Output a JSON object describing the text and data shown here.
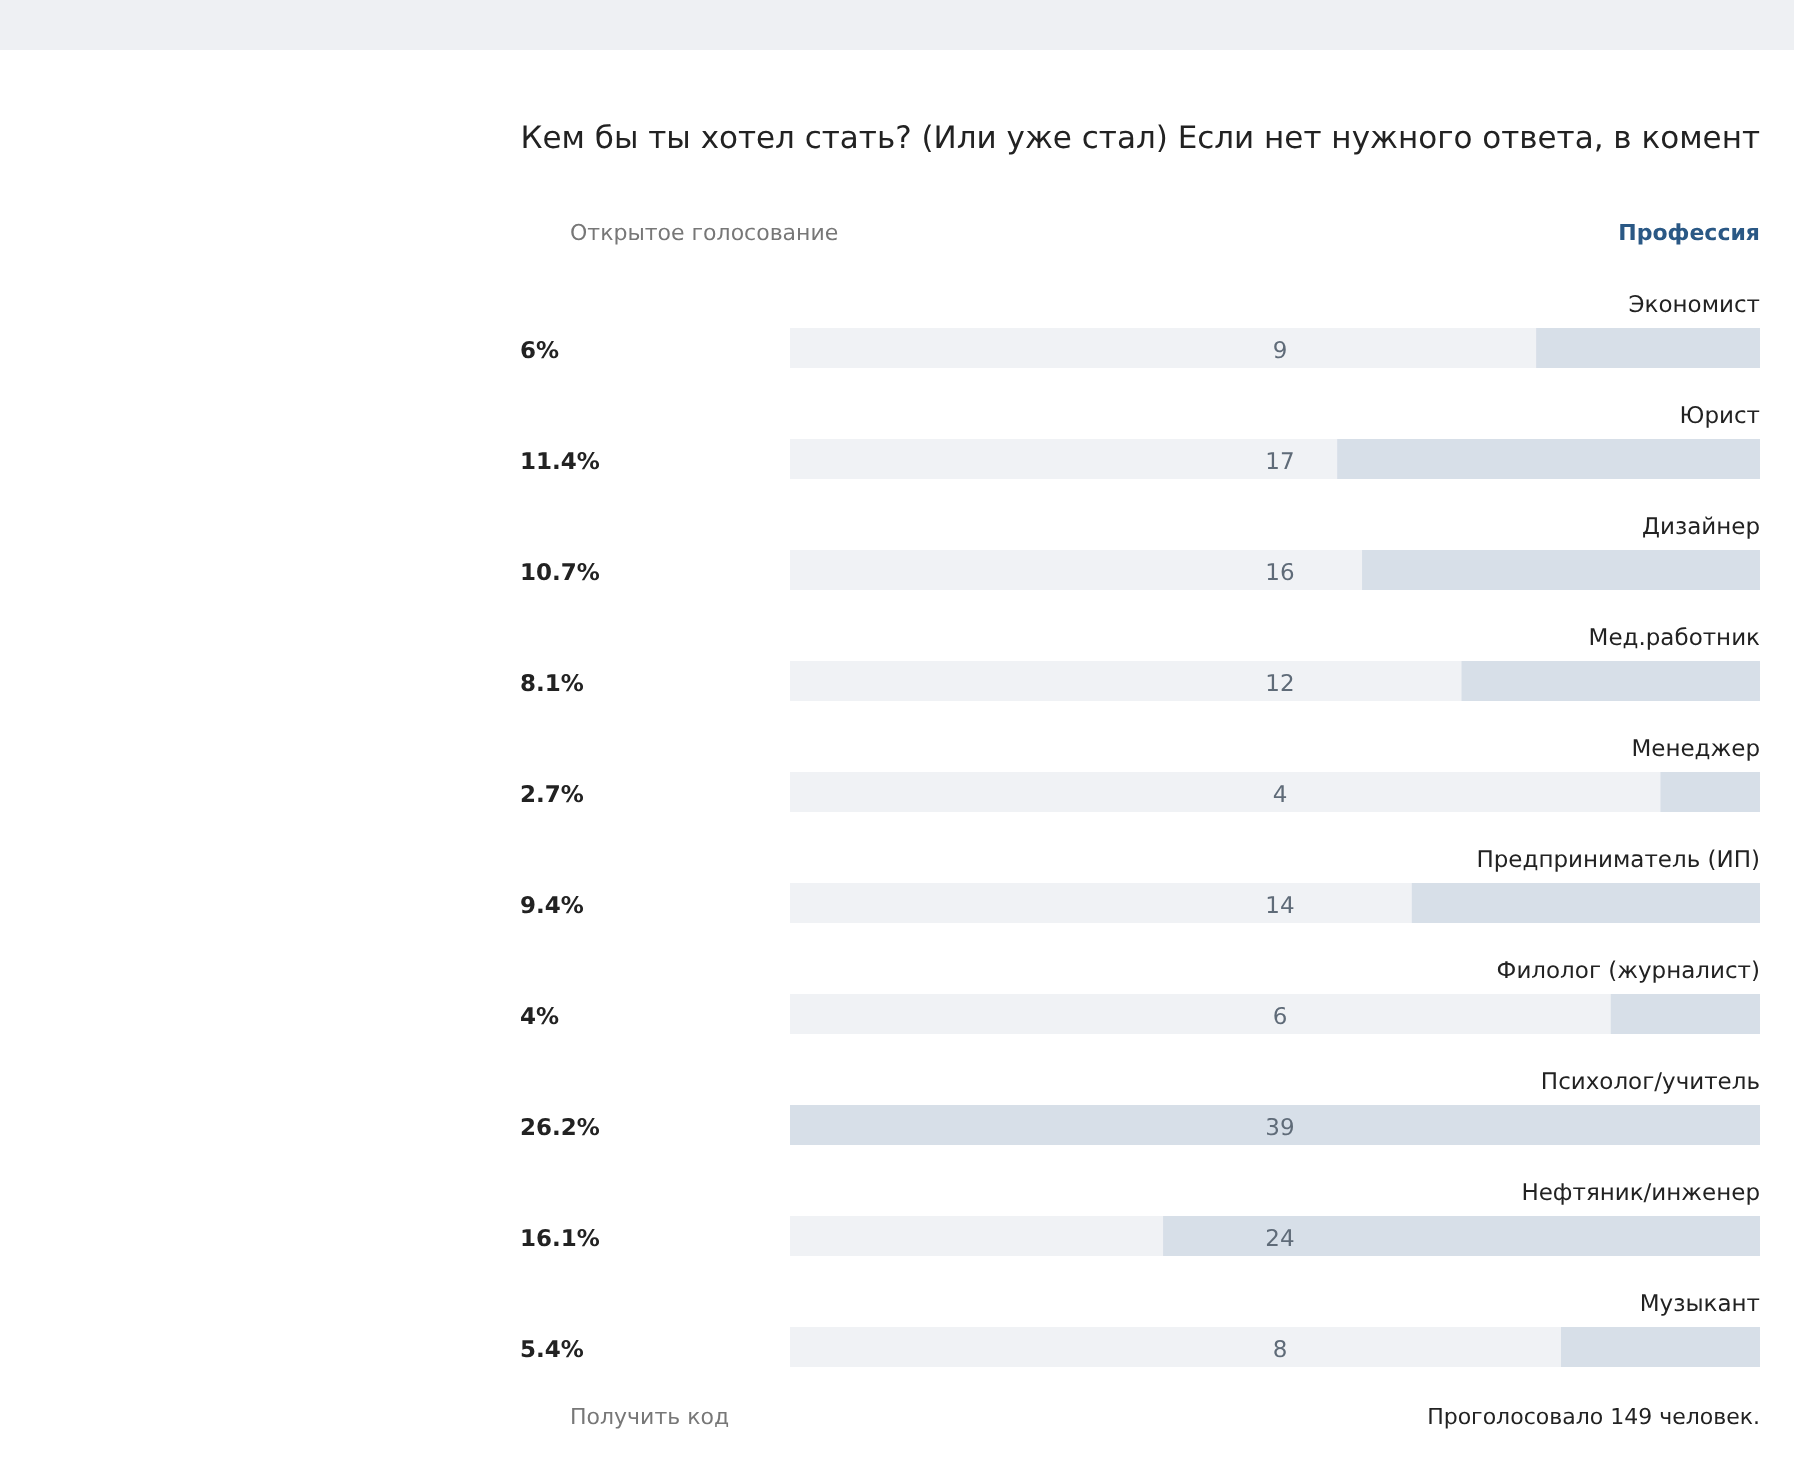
{
  "chart_data": {
    "type": "bar",
    "orientation": "horizontal",
    "title": "Кем бы ты хотел стать? (Или уже стал) Если нет нужного ответа, в комент",
    "subtitle": "Профессия",
    "categories": [
      "Экономист",
      "Юрист",
      "Дизайнер",
      "Мед.работник",
      "Менеджер",
      "Предприниматель (ИП)",
      "Филолог (журналист)",
      "Психолог/учитель",
      "Нефтяник/инженер",
      "Музыкант"
    ],
    "values": [
      9,
      17,
      16,
      12,
      4,
      14,
      6,
      39,
      24,
      8
    ],
    "color": "#d7dfe8",
    "data_labels": true,
    "annotations": [
      "6%",
      "11.4%",
      "10.7%",
      "8.1%",
      "2.7%",
      "9.4%",
      "4%",
      "26.2%",
      "16.1%",
      "5.4%",
      "Открытое голосование",
      "Проголосовало 149 человек.",
      "Получить код"
    ]
  }
}
